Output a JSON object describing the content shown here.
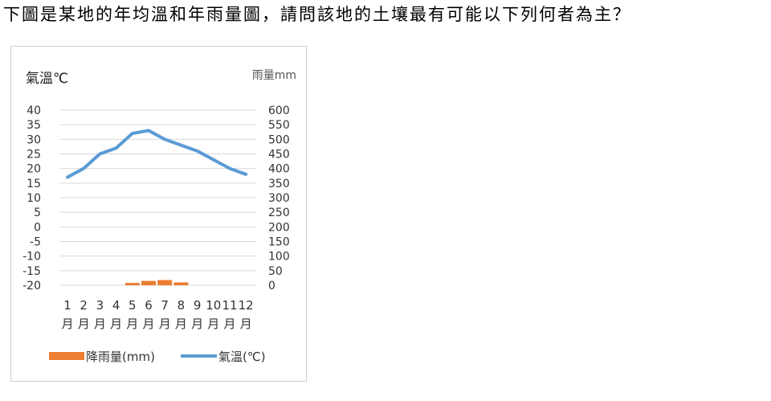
{
  "question": "下圖是某地的年均溫和年雨量圖，請問該地的土壤最有可能以下列何者為主？",
  "chart_data": {
    "type": "bar+line",
    "categories": [
      "1\n月",
      "2\n月",
      "3\n月",
      "4\n月",
      "5\n月",
      "6\n月",
      "7\n月",
      "8\n月",
      "9\n月",
      "10\n月",
      "11\n月",
      "12\n月"
    ],
    "category_top": [
      "1",
      "2",
      "3",
      "4",
      "5",
      "6",
      "7",
      "8",
      "9",
      "10",
      "11",
      "12"
    ],
    "category_bottom": [
      "月",
      "月",
      "月",
      "月",
      "月",
      "月",
      "月",
      "月",
      "月",
      "月",
      "月",
      "月"
    ],
    "left_axis_label": "氣溫℃",
    "right_axis_label": "雨量mm",
    "left_ticks": [
      "40",
      "35",
      "30",
      "25",
      "20",
      "15",
      "10",
      "5",
      "0",
      "-5",
      "-10",
      "-15",
      "-20"
    ],
    "right_ticks": [
      "600",
      "550",
      "500",
      "450",
      "400",
      "350",
      "300",
      "250",
      "200",
      "150",
      "100",
      "50",
      "0"
    ],
    "left_ylim": [
      -20,
      40
    ],
    "right_ylim": [
      0,
      600
    ],
    "grid": true,
    "legend_position": "bottom",
    "series": [
      {
        "name": "降雨量(mm)",
        "type": "bar",
        "axis": "right",
        "color": "#ED7D31",
        "values": [
          0,
          0,
          0,
          0,
          8,
          15,
          18,
          10,
          0,
          0,
          0,
          0
        ]
      },
      {
        "name": "氣溫(℃)",
        "type": "line",
        "axis": "left",
        "color": "#5B9BD5",
        "values": [
          17,
          20,
          25,
          27,
          32,
          33,
          30,
          28,
          26,
          23,
          20,
          18
        ]
      }
    ]
  }
}
